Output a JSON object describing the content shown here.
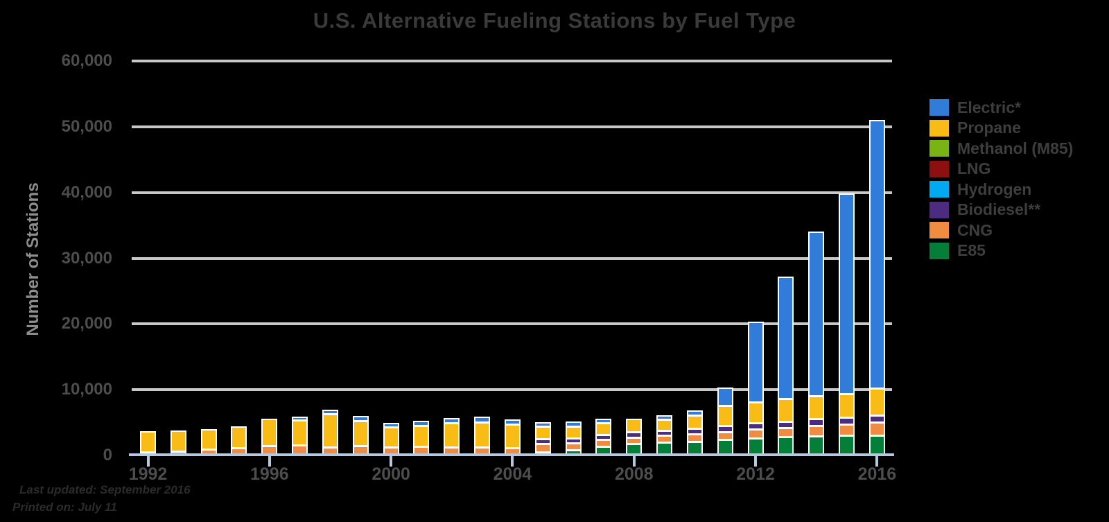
{
  "footer": {
    "line1": "Last updated: September 2016",
    "line2": "Printed on: July 11"
  },
  "colors": {
    "background": "#000000",
    "bar_border": "#FFFFFF",
    "gridline": "#C7C7C7",
    "axis_line": "#B7C8DC",
    "title_text": "#3A3A3A",
    "tick_text": "#4D4D4D",
    "y_axis_title_text": "#8E8E8E",
    "legend_text": "#3E3E3E",
    "footer_text": "#2B2B2B"
  },
  "chart_data": {
    "type": "bar",
    "stacked": true,
    "title": "U.S. Alternative Fueling Stations by Fuel Type",
    "xlabel": "",
    "ylabel": "Number of Stations",
    "ylim": [
      0,
      60000
    ],
    "ytick_values": [
      0,
      10000,
      20000,
      30000,
      40000,
      50000,
      60000
    ],
    "ytick_labels": [
      "0",
      "10,000",
      "20,000",
      "30,000",
      "40,000",
      "50,000",
      "60,000"
    ],
    "grid": "horizontal",
    "legend_position": "right",
    "years": [
      1992,
      1993,
      1994,
      1995,
      1996,
      1997,
      1998,
      1999,
      2000,
      2001,
      2002,
      2003,
      2004,
      2005,
      2006,
      2007,
      2008,
      2009,
      2010,
      2011,
      2012,
      2013,
      2014,
      2015,
      2016
    ],
    "xtick_years": [
      1992,
      1996,
      2000,
      2004,
      2008,
      2012,
      2016
    ],
    "legend": [
      {
        "label": "Electric*",
        "color": "#307CD8"
      },
      {
        "label": "Propane",
        "color": "#F9BB16"
      },
      {
        "label": "Methanol (M85)",
        "color": "#7AB414"
      },
      {
        "label": "LNG",
        "color": "#8E0F0F"
      },
      {
        "label": "Hydrogen",
        "color": "#00A9F0"
      },
      {
        "label": "Biodiesel**",
        "color": "#4B2C80"
      },
      {
        "label": "CNG",
        "color": "#EF8C41"
      },
      {
        "label": "E85",
        "color": "#047E38"
      }
    ],
    "series": [
      {
        "name": "E85",
        "color": "#047E38",
        "values": [
          40,
          60,
          80,
          110,
          130,
          150,
          160,
          170,
          150,
          160,
          170,
          180,
          200,
          350,
          600,
          1200,
          1550,
          1800,
          1900,
          2200,
          2400,
          2600,
          2700,
          2800,
          2900
        ]
      },
      {
        "name": "CNG",
        "color": "#EF8C41",
        "values": [
          300,
          400,
          700,
          900,
          1250,
          1350,
          1100,
          1250,
          1100,
          1150,
          1100,
          1050,
          1000,
          900,
          750,
          700,
          700,
          700,
          800,
          900,
          1050,
          1100,
          1350,
          1450,
          1650
        ]
      },
      {
        "name": "Biodiesel**",
        "color": "#4B2C80",
        "values": [
          0,
          0,
          0,
          0,
          0,
          0,
          0,
          0,
          0,
          0,
          20,
          100,
          200,
          450,
          450,
          450,
          450,
          500,
          550,
          600,
          650,
          650,
          750,
          700,
          700
        ]
      },
      {
        "name": "Hydrogen",
        "color": "#00A9F0",
        "values": [
          0,
          0,
          0,
          0,
          0,
          0,
          0,
          0,
          0,
          5,
          10,
          15,
          20,
          25,
          30,
          35,
          40,
          45,
          50,
          55,
          60,
          55,
          55,
          60,
          60
        ]
      },
      {
        "name": "LNG",
        "color": "#8E0F0F",
        "values": [
          10,
          15,
          30,
          40,
          45,
          60,
          60,
          60,
          45,
          50,
          55,
          60,
          55,
          50,
          45,
          40,
          40,
          40,
          45,
          45,
          50,
          70,
          90,
          110,
          120
        ]
      },
      {
        "name": "Methanol (M85)",
        "color": "#7AB414",
        "values": [
          80,
          85,
          85,
          85,
          80,
          70,
          50,
          35,
          20,
          15,
          5,
          0,
          0,
          0,
          0,
          0,
          0,
          0,
          0,
          0,
          0,
          0,
          0,
          0,
          0
        ]
      },
      {
        "name": "Propane",
        "color": "#F9BB16",
        "values": [
          3350,
          3350,
          3350,
          3500,
          4300,
          4350,
          5500,
          4300,
          3550,
          3750,
          4150,
          4350,
          4050,
          3000,
          3000,
          2900,
          2850,
          2850,
          3150,
          2750,
          2900,
          3150,
          3150,
          3250,
          3800
        ]
      },
      {
        "name": "Electric*",
        "color": "#307CD8",
        "values": [
          0,
          0,
          0,
          0,
          0,
          250,
          400,
          420,
          350,
          400,
          450,
          500,
          450,
          400,
          400,
          300,
          220,
          300,
          450,
          3850,
          13400,
          19700,
          26100,
          31700,
          42000
        ]
      }
    ]
  }
}
